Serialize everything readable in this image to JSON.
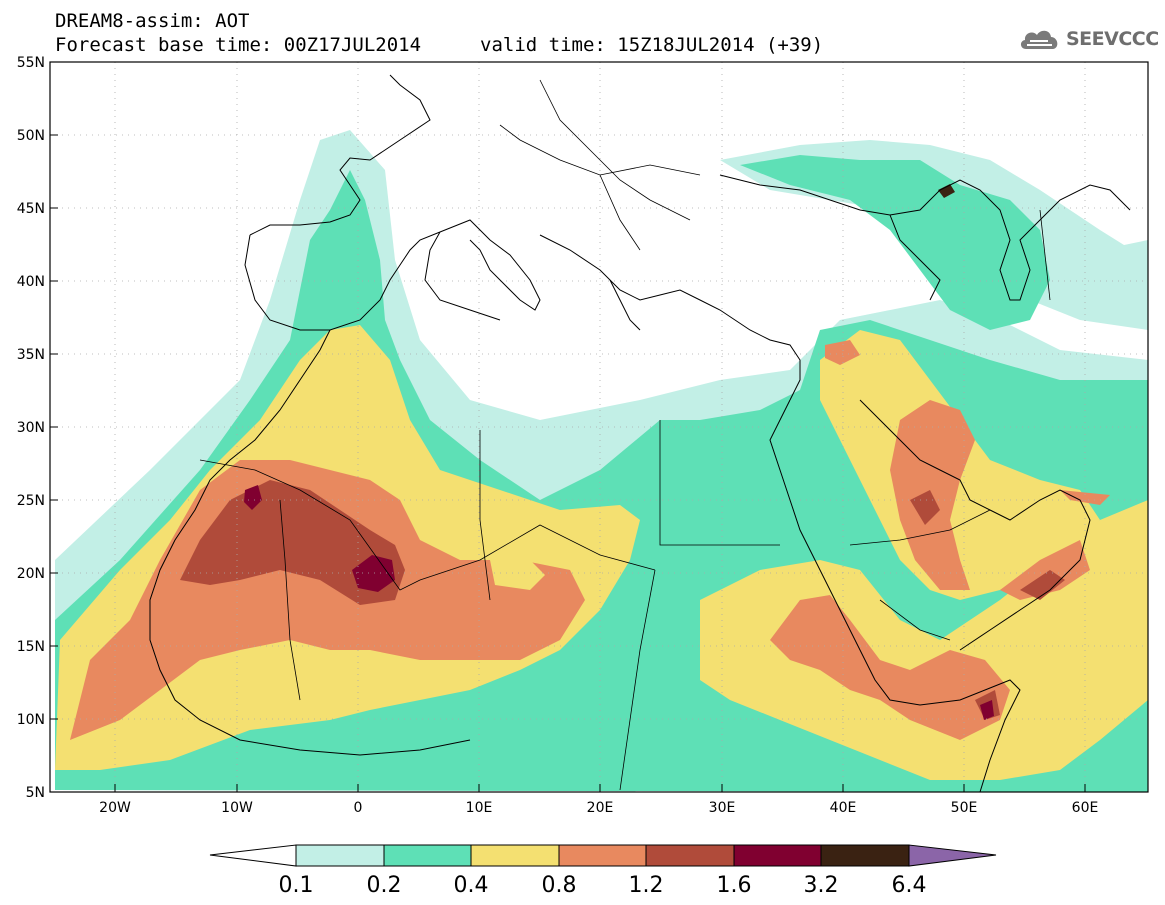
{
  "header": {
    "title": "DREAM8-assim: AOT",
    "base_time": "Forecast base time: 00Z17JUL2014",
    "valid_time": "valid time: 15Z18JUL2014 (+39)"
  },
  "logo": {
    "text": "SEEVCCC",
    "icon": "cloud-icon"
  },
  "map": {
    "lat_range": [
      5,
      55
    ],
    "lon_range": [
      -25,
      65
    ],
    "lat_ticks": [
      "5N",
      "10N",
      "15N",
      "20N",
      "25N",
      "30N",
      "35N",
      "40N",
      "45N",
      "50N",
      "55N"
    ],
    "lon_ticks": [
      "20W",
      "10W",
      "0",
      "10E",
      "20E",
      "30E",
      "40E",
      "50E",
      "60E"
    ],
    "grid": true
  },
  "colorbar": {
    "labels": [
      "0.1",
      "0.2",
      "0.4",
      "0.8",
      "1.2",
      "1.6",
      "3.2",
      "6.4"
    ],
    "colors": [
      "#ffffff",
      "#c2efe6",
      "#5ee0b6",
      "#f4e071",
      "#e8895f",
      "#b04b3a",
      "#800030",
      "#3a2212",
      "#8b65a8"
    ]
  }
}
